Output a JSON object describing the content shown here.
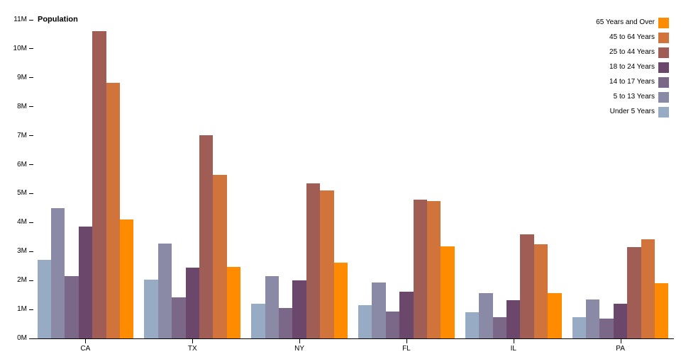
{
  "chart_data": {
    "type": "bar",
    "title": "",
    "ylabel": "Population",
    "xlabel": "",
    "categories": [
      "CA",
      "TX",
      "NY",
      "FL",
      "IL",
      "PA"
    ],
    "series": [
      {
        "name": "Under 5 Years",
        "color": "#98abc5",
        "values": [
          2704659,
          2027307,
          1208495,
          1140516,
          894368,
          737462
        ]
      },
      {
        "name": "5 to 13 Years",
        "color": "#8a89a6",
        "values": [
          4499890,
          3277946,
          2141490,
          1938695,
          1558919,
          1345341
        ]
      },
      {
        "name": "14 to 17 Years",
        "color": "#7b6888",
        "values": [
          2159981,
          1420518,
          1058031,
          925060,
          725973,
          679201
        ]
      },
      {
        "name": "18 to 24 Years",
        "color": "#6b486b",
        "values": [
          3853788,
          2454721,
          1999120,
          1607297,
          1311479,
          1203944
        ]
      },
      {
        "name": "25 to 44 Years",
        "color": "#a05d56",
        "values": [
          10604510,
          7017731,
          5355235,
          4782119,
          3596343,
          3157759
        ]
      },
      {
        "name": "45 to 64 Years",
        "color": "#d0743c",
        "values": [
          8819342,
          5656528,
          5120254,
          4746856,
          3239173,
          3414001
        ]
      },
      {
        "name": "65 Years and Over",
        "color": "#ff8c00",
        "values": [
          4114496,
          2472223,
          2607672,
          3187797,
          1575308,
          1910571
        ]
      }
    ],
    "ylim": [
      0,
      11000000
    ],
    "y_ticks": [
      "0M",
      "1M",
      "2M",
      "3M",
      "4M",
      "5M",
      "6M",
      "7M",
      "8M",
      "9M",
      "10M",
      "11M"
    ],
    "grid": false,
    "legend_position": "top-right",
    "legend_order_top_to_bottom": [
      "65 Years and Over",
      "45 to 64 Years",
      "25 to 44 Years",
      "18 to 24 Years",
      "14 to 17 Years",
      "5 to 13 Years",
      "Under 5 Years"
    ],
    "axis_color": "#000000",
    "background_color": "#ffffff"
  }
}
